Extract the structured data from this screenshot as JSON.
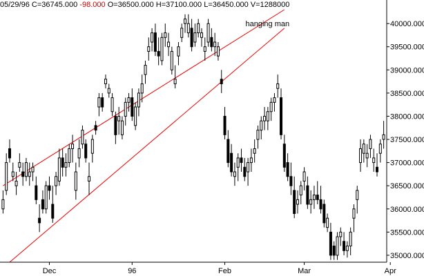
{
  "header": {
    "date": "05/29/96",
    "close": "C=36745.000",
    "change": "-98.000",
    "open": "O=36500.000",
    "high": "H=37100.000",
    "low": "L=36450.000",
    "volume": "V=1288000"
  },
  "colors": {
    "change": "#cc0000",
    "channel": "#ee0000",
    "candle": "#000000",
    "axis": "#000000"
  },
  "chart_data": {
    "type": "candlestick",
    "yaxis": {
      "position": "right",
      "ylim": [
        34850,
        40300
      ],
      "ticks": [
        "35000.000",
        "35500.000",
        "36000.000",
        "36500.000",
        "37000.000",
        "37500.000",
        "38000.000",
        "38500.000",
        "39000.000",
        "39500.000",
        "40000.000"
      ]
    },
    "xaxis": {
      "labels": [
        {
          "label": "Dec",
          "i": 14
        },
        {
          "label": "96",
          "i": 39
        },
        {
          "label": "Feb",
          "i": 67
        },
        {
          "label": "Mar",
          "i": 91
        },
        {
          "label": "Apr",
          "i": 117
        }
      ]
    },
    "annotations": [
      {
        "text": "hanging man",
        "at_index": 72,
        "value": 40000
      }
    ],
    "trend_channel": {
      "color": "#ee0000",
      "upper": [
        [
          0,
          36500
        ],
        [
          85,
          40300
        ]
      ],
      "lower": [
        [
          2,
          34850
        ],
        [
          85,
          39900
        ]
      ]
    },
    "candles": [
      [
        36000,
        36400,
        35900,
        36200
      ],
      [
        36400,
        37200,
        36300,
        37000
      ],
      [
        37300,
        37500,
        37000,
        37100
      ],
      [
        36700,
        37000,
        36600,
        36800
      ],
      [
        36500,
        36800,
        36300,
        36600
      ],
      [
        36900,
        37200,
        36800,
        37000
      ],
      [
        36800,
        37000,
        36500,
        36700
      ],
      [
        36700,
        37100,
        36600,
        37000
      ],
      [
        36700,
        37000,
        36500,
        36800
      ],
      [
        36800,
        37000,
        36600,
        36900
      ],
      [
        36500,
        36700,
        36100,
        36200
      ],
      [
        35800,
        36100,
        35500,
        35700
      ],
      [
        36200,
        36400,
        35900,
        36000
      ],
      [
        36000,
        36600,
        35900,
        36500
      ],
      [
        36500,
        36700,
        36200,
        36400
      ],
      [
        36100,
        36500,
        35700,
        35800
      ],
      [
        36500,
        36800,
        36300,
        36700
      ],
      [
        36600,
        37300,
        36500,
        37100
      ],
      [
        37100,
        37300,
        36700,
        36900
      ],
      [
        36900,
        37200,
        36700,
        37000
      ],
      [
        37000,
        37400,
        36900,
        37300
      ],
      [
        37300,
        37600,
        37000,
        37400
      ],
      [
        36400,
        37000,
        36200,
        36800
      ],
      [
        37100,
        37500,
        36900,
        37300
      ],
      [
        37400,
        37800,
        37300,
        37700
      ],
      [
        37400,
        37500,
        37000,
        37100
      ],
      [
        36600,
        37000,
        36300,
        36700
      ],
      [
        37200,
        37600,
        37000,
        37500
      ],
      [
        37800,
        37900,
        37600,
        37700
      ],
      [
        38200,
        38500,
        38000,
        38400
      ],
      [
        38400,
        38500,
        38100,
        38200
      ],
      [
        38700,
        38900,
        38600,
        38800
      ],
      [
        38500,
        38700,
        38400,
        38600
      ],
      [
        38100,
        38500,
        38000,
        38400
      ],
      [
        38000,
        38100,
        37400,
        37600
      ],
      [
        37900,
        38200,
        37600,
        38000
      ],
      [
        37600,
        38000,
        37500,
        37900
      ],
      [
        38000,
        38400,
        37800,
        38300
      ],
      [
        38300,
        38500,
        38100,
        38400
      ],
      [
        38400,
        38600,
        37900,
        38000
      ],
      [
        37800,
        38300,
        37700,
        38200
      ],
      [
        38200,
        38600,
        38000,
        38500
      ],
      [
        38500,
        38900,
        38300,
        38700
      ],
      [
        38900,
        39200,
        38700,
        39100
      ],
      [
        39400,
        39700,
        39200,
        39500
      ],
      [
        39600,
        39900,
        39400,
        39800
      ],
      [
        39800,
        40000,
        39300,
        39400
      ],
      [
        39400,
        39700,
        39100,
        39300
      ],
      [
        39200,
        39800,
        39100,
        39700
      ],
      [
        39700,
        40000,
        39500,
        39800
      ],
      [
        39500,
        39800,
        39300,
        39600
      ],
      [
        39000,
        39500,
        38900,
        39400
      ],
      [
        38700,
        39100,
        38600,
        38800
      ],
      [
        39300,
        39600,
        39100,
        39500
      ],
      [
        39700,
        40000,
        39600,
        39900
      ],
      [
        40000,
        40200,
        39800,
        40100
      ],
      [
        39800,
        40200,
        39700,
        40000
      ],
      [
        39900,
        40100,
        39400,
        39500
      ],
      [
        39600,
        40000,
        39500,
        39800
      ],
      [
        39800,
        40100,
        39700,
        40000
      ],
      [
        39700,
        39900,
        39500,
        39800
      ],
      [
        39400,
        39700,
        39200,
        39500
      ],
      [
        39600,
        40100,
        39500,
        40000
      ],
      [
        39700,
        39900,
        39400,
        39500
      ],
      [
        39500,
        39800,
        39300,
        39600
      ],
      [
        39300,
        39600,
        39200,
        39500
      ],
      [
        38800,
        39000,
        38500,
        38700
      ],
      [
        38000,
        38200,
        37500,
        37600
      ],
      [
        37500,
        37700,
        36900,
        37000
      ],
      [
        37200,
        37400,
        36700,
        36800
      ],
      [
        36700,
        37000,
        36500,
        36800
      ],
      [
        36900,
        37200,
        36600,
        37100
      ],
      [
        37100,
        37300,
        36800,
        37000
      ],
      [
        36900,
        37100,
        36600,
        36700
      ],
      [
        36800,
        37100,
        36500,
        37000
      ],
      [
        37000,
        37300,
        36800,
        37100
      ],
      [
        37200,
        37500,
        37000,
        37300
      ],
      [
        37500,
        37800,
        37300,
        37700
      ],
      [
        37700,
        38000,
        37500,
        37900
      ],
      [
        37900,
        38200,
        37700,
        38000
      ],
      [
        37900,
        38200,
        37700,
        38100
      ],
      [
        38100,
        38400,
        37900,
        38300
      ],
      [
        38300,
        38500,
        38100,
        38400
      ],
      [
        38600,
        38900,
        38400,
        38700
      ],
      [
        38400,
        38600,
        37500,
        37600
      ],
      [
        37400,
        37600,
        36800,
        36900
      ],
      [
        37000,
        37200,
        36600,
        36700
      ],
      [
        36700,
        37000,
        36300,
        36500
      ],
      [
        36400,
        36700,
        35800,
        35900
      ],
      [
        36100,
        36400,
        35900,
        36200
      ],
      [
        36300,
        36600,
        36100,
        36500
      ],
      [
        36600,
        36900,
        36400,
        36800
      ],
      [
        36500,
        36700,
        36000,
        36100
      ],
      [
        36100,
        36400,
        35900,
        36200
      ],
      [
        36200,
        36500,
        36000,
        36300
      ],
      [
        36300,
        36600,
        36100,
        36200
      ],
      [
        36200,
        36500,
        35900,
        36000
      ],
      [
        36100,
        36200,
        35600,
        35700
      ],
      [
        35600,
        35900,
        35500,
        35800
      ],
      [
        35500,
        35700,
        34900,
        35000
      ],
      [
        35200,
        35300,
        34900,
        35000
      ],
      [
        35000,
        35500,
        34900,
        35400
      ],
      [
        35400,
        35600,
        35200,
        35500
      ],
      [
        35300,
        35500,
        35000,
        35100
      ],
      [
        35100,
        35300,
        34950,
        35200
      ],
      [
        35200,
        35600,
        35000,
        35500
      ],
      [
        35800,
        36100,
        35500,
        36000
      ],
      [
        36200,
        36500,
        35900,
        36400
      ],
      [
        37000,
        37500,
        36800,
        37300
      ],
      [
        37200,
        37500,
        37000,
        37400
      ],
      [
        37100,
        37400,
        36900,
        37200
      ],
      [
        37300,
        37600,
        37100,
        37500
      ],
      [
        37000,
        37300,
        36800,
        37100
      ],
      [
        36900,
        37200,
        36700,
        36800
      ],
      [
        37200,
        37500,
        37000,
        37400
      ],
      [
        37500,
        37900,
        37300,
        37600
      ]
    ]
  }
}
